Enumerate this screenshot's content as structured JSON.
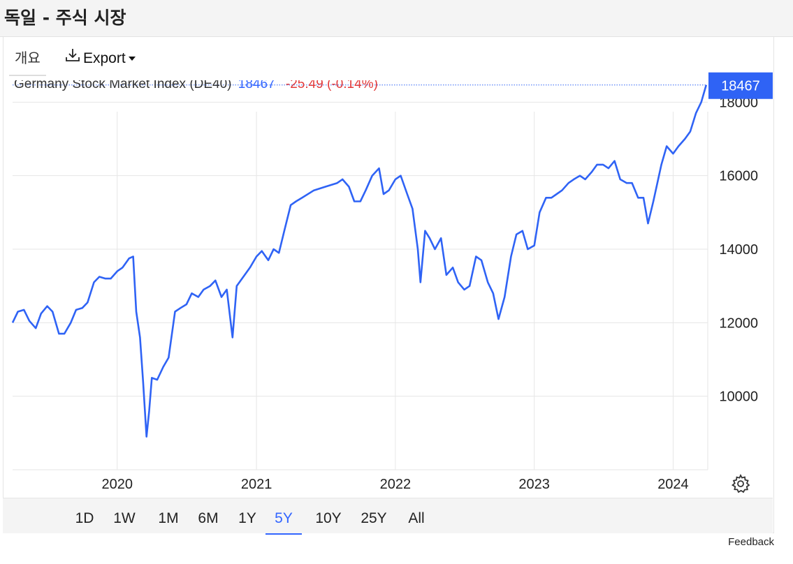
{
  "page": {
    "title": "독일 - 주식 시장"
  },
  "toolbar": {
    "overview_tab": "개요",
    "export_label": "Export"
  },
  "legend": {
    "name": "Germany Stock Market Index (DE40)",
    "value": "18467",
    "change": "-25.49 (-0.14%)"
  },
  "colors": {
    "line": "#2f63f5",
    "last_label_bg": "#2f63f5",
    "negative": "#e33b3b",
    "grid": "#e6e6e6"
  },
  "icons": {
    "export": "download-icon",
    "settings": "gear-icon"
  },
  "range_buttons": [
    "1D",
    "1W",
    "1M",
    "6M",
    "1Y",
    "5Y",
    "10Y",
    "25Y",
    "All"
  ],
  "active_range": "5Y",
  "footer": {
    "feedback": "Feedback"
  },
  "chart_data": {
    "type": "line",
    "title": "Germany Stock Market Index (DE40)",
    "last_value": 18467,
    "last_value_label": "18467",
    "x_ticks": [
      "2020",
      "2021",
      "2022",
      "2023",
      "2024"
    ],
    "y_ticks": [
      "10000",
      "12000",
      "14000",
      "16000",
      "18000"
    ],
    "ylim": [
      8000,
      18500
    ],
    "xlim": [
      "2019-04-01",
      "2024-04-01"
    ],
    "grid": true,
    "series": [
      {
        "x": [
          "2019-04-01",
          "2019-04-15",
          "2019-05-01",
          "2019-05-15",
          "2019-06-01",
          "2019-06-15",
          "2019-07-01",
          "2019-07-15",
          "2019-08-01",
          "2019-08-15",
          "2019-09-01",
          "2019-09-15",
          "2019-10-01",
          "2019-10-15",
          "2019-11-01",
          "2019-11-15",
          "2019-12-01",
          "2019-12-15",
          "2020-01-01",
          "2020-01-15",
          "2020-02-01",
          "2020-02-12",
          "2020-02-20",
          "2020-03-01",
          "2020-03-09",
          "2020-03-18",
          "2020-03-25",
          "2020-04-01",
          "2020-04-15",
          "2020-05-01",
          "2020-05-15",
          "2020-06-01",
          "2020-06-15",
          "2020-07-01",
          "2020-07-15",
          "2020-08-01",
          "2020-08-15",
          "2020-09-01",
          "2020-09-15",
          "2020-10-01",
          "2020-10-15",
          "2020-10-30",
          "2020-11-10",
          "2020-12-01",
          "2020-12-15",
          "2021-01-01",
          "2021-01-15",
          "2021-02-01",
          "2021-02-15",
          "2021-03-01",
          "2021-03-15",
          "2021-04-01",
          "2021-04-15",
          "2021-05-01",
          "2021-06-01",
          "2021-07-01",
          "2021-08-01",
          "2021-08-15",
          "2021-09-01",
          "2021-09-15",
          "2021-10-01",
          "2021-10-15",
          "2021-11-01",
          "2021-11-19",
          "2021-12-01",
          "2021-12-15",
          "2022-01-01",
          "2022-01-15",
          "2022-02-01",
          "2022-02-15",
          "2022-03-01",
          "2022-03-08",
          "2022-03-20",
          "2022-04-01",
          "2022-04-15",
          "2022-05-01",
          "2022-05-15",
          "2022-06-01",
          "2022-06-15",
          "2022-07-01",
          "2022-07-15",
          "2022-08-01",
          "2022-08-15",
          "2022-09-01",
          "2022-09-15",
          "2022-09-29",
          "2022-10-15",
          "2022-11-01",
          "2022-11-15",
          "2022-12-01",
          "2022-12-15",
          "2023-01-01",
          "2023-01-15",
          "2023-02-01",
          "2023-02-15",
          "2023-03-01",
          "2023-03-15",
          "2023-04-01",
          "2023-04-15",
          "2023-05-01",
          "2023-05-15",
          "2023-06-01",
          "2023-06-15",
          "2023-07-01",
          "2023-07-15",
          "2023-07-31",
          "2023-08-15",
          "2023-09-01",
          "2023-09-15",
          "2023-10-01",
          "2023-10-15",
          "2023-10-27",
          "2023-11-10",
          "2023-12-01",
          "2023-12-15",
          "2024-01-01",
          "2024-01-15",
          "2024-02-01",
          "2024-02-15",
          "2024-03-01",
          "2024-03-15",
          "2024-03-28"
        ],
        "values": [
          12000,
          12300,
          12350,
          12050,
          11850,
          12250,
          12450,
          12300,
          11700,
          11700,
          12000,
          12350,
          12400,
          12550,
          13100,
          13250,
          13200,
          13200,
          13400,
          13500,
          13750,
          13800,
          12300,
          11600,
          10400,
          8900,
          9600,
          10500,
          10450,
          10800,
          11050,
          12300,
          12400,
          12500,
          12800,
          12700,
          12900,
          13000,
          13150,
          12700,
          12900,
          11600,
          13000,
          13300,
          13500,
          13800,
          13950,
          13700,
          14000,
          13900,
          14500,
          15200,
          15300,
          15400,
          15600,
          15700,
          15800,
          15900,
          15700,
          15300,
          15300,
          15600,
          16000,
          16200,
          15500,
          15600,
          15900,
          16000,
          15500,
          15100,
          14000,
          13100,
          14500,
          14300,
          14000,
          14300,
          13300,
          13500,
          13100,
          12900,
          13000,
          13800,
          13700,
          13100,
          12800,
          12100,
          12700,
          13800,
          14400,
          14500,
          14000,
          14100,
          15000,
          15400,
          15400,
          15500,
          15600,
          15800,
          15900,
          16000,
          15900,
          16100,
          16300,
          16300,
          16200,
          16400,
          15900,
          15800,
          15800,
          15400,
          15400,
          14700,
          15300,
          16300,
          16800,
          16600,
          16800,
          17000,
          17200,
          17700,
          18000,
          18467
        ]
      }
    ]
  }
}
